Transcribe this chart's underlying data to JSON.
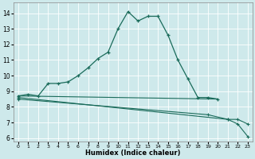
{
  "xlabel": "Humidex (Indice chaleur)",
  "xlim": [
    -0.5,
    23.5
  ],
  "ylim": [
    5.8,
    14.7
  ],
  "yticks": [
    6,
    7,
    8,
    9,
    10,
    11,
    12,
    13,
    14
  ],
  "xticks": [
    0,
    1,
    2,
    3,
    4,
    5,
    6,
    7,
    8,
    9,
    10,
    11,
    12,
    13,
    14,
    15,
    16,
    17,
    18,
    19,
    20,
    21,
    22,
    23
  ],
  "bg_color": "#cee9eb",
  "grid_color": "#ffffff",
  "line_color": "#1a6b5a",
  "line1_x": [
    0,
    1,
    2,
    3,
    4,
    5,
    6,
    7,
    8,
    9,
    10,
    11,
    12,
    13,
    14,
    15,
    16,
    17,
    18,
    19,
    20
  ],
  "line1_y": [
    8.7,
    8.8,
    8.7,
    9.5,
    9.5,
    9.6,
    10.0,
    10.5,
    11.1,
    11.5,
    13.0,
    14.1,
    13.5,
    13.8,
    13.8,
    12.6,
    11.0,
    9.8,
    8.6,
    8.6,
    8.5
  ],
  "line2_x": [
    0,
    20
  ],
  "line2_y": [
    8.7,
    8.5
  ],
  "line3_x": [
    0,
    21,
    22,
    23
  ],
  "line3_y": [
    8.6,
    7.2,
    7.2,
    6.9
  ],
  "line4_x": [
    0,
    19,
    21,
    22,
    23
  ],
  "line4_y": [
    8.5,
    7.5,
    7.2,
    6.9,
    6.1
  ]
}
